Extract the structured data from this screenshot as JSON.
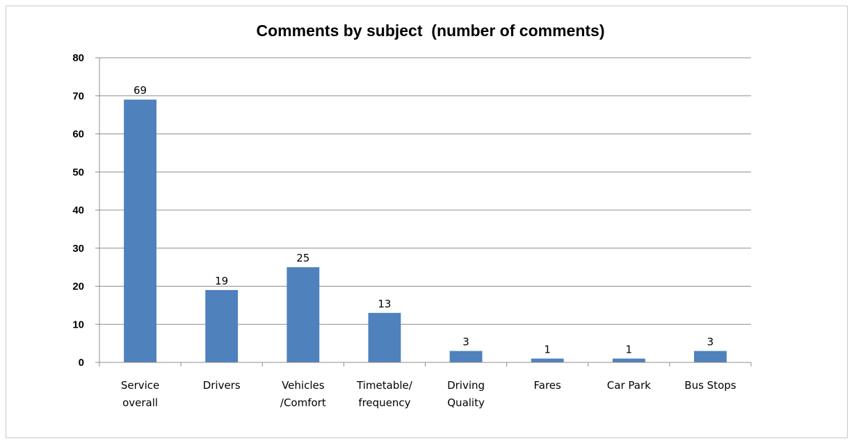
{
  "chart_data": {
    "type": "bar",
    "title": "Comments by subject  (number of comments)",
    "categories": [
      [
        "Service",
        "overall"
      ],
      [
        "Drivers"
      ],
      [
        "Vehicles",
        "/Comfort"
      ],
      [
        "Timetable/",
        "frequency"
      ],
      [
        "Driving",
        "Quality"
      ],
      [
        "Fares"
      ],
      [
        "Car Park"
      ],
      [
        "Bus Stops"
      ]
    ],
    "values": [
      69,
      19,
      25,
      13,
      3,
      1,
      1,
      3
    ],
    "ylim": [
      0,
      80
    ],
    "yticks": [
      0,
      10,
      20,
      30,
      40,
      50,
      60,
      70,
      80
    ],
    "grid": true,
    "legend": "none",
    "bar_color": "#4f81bd",
    "grid_color": "#8c8c8c"
  }
}
